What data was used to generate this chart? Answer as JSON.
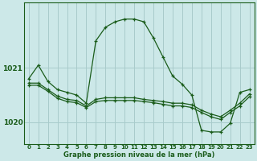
{
  "title": "Graphe pression niveau de la mer (hPa)",
  "background_color": "#cce8e8",
  "grid_color_teal": "#a8cccc",
  "grid_color_pink": "#e0aaaa",
  "line_color": "#1a5c1a",
  "ylim": [
    1019.6,
    1022.2
  ],
  "yticks": [
    1020,
    1021
  ],
  "xticks": [
    0,
    1,
    2,
    3,
    4,
    5,
    6,
    7,
    8,
    9,
    10,
    11,
    12,
    13,
    14,
    15,
    16,
    17,
    18,
    19,
    20,
    21,
    22,
    23
  ],
  "series": [
    {
      "x": [
        0,
        1,
        2,
        3,
        4,
        5,
        6,
        7,
        8,
        9,
        10,
        11,
        12,
        13,
        14,
        15,
        16,
        17,
        18,
        19,
        20,
        21,
        22,
        23
      ],
      "y": [
        1020.8,
        1021.05,
        1020.75,
        1020.6,
        1020.55,
        1020.5,
        1020.35,
        1021.5,
        1021.75,
        1021.85,
        1021.9,
        1021.9,
        1021.85,
        1021.55,
        1021.2,
        1020.85,
        1020.7,
        1020.5,
        1019.85,
        1019.82,
        1019.82,
        1019.98,
        1020.55,
        1020.6
      ]
    },
    {
      "x": [
        0,
        1,
        2,
        3,
        4,
        5,
        6,
        7,
        8,
        9,
        10,
        11,
        12,
        13,
        14,
        15,
        16,
        17,
        18,
        19,
        20,
        21,
        22,
        23
      ],
      "y": [
        1020.72,
        1020.72,
        1020.6,
        1020.48,
        1020.42,
        1020.4,
        1020.3,
        1020.42,
        1020.45,
        1020.45,
        1020.45,
        1020.45,
        1020.42,
        1020.4,
        1020.38,
        1020.35,
        1020.35,
        1020.32,
        1020.22,
        1020.15,
        1020.1,
        1020.22,
        1020.35,
        1020.52
      ]
    },
    {
      "x": [
        0,
        1,
        2,
        3,
        4,
        5,
        6,
        7,
        8,
        9,
        10,
        11,
        12,
        13,
        14,
        15,
        16,
        17,
        18,
        19,
        20,
        21,
        22,
        23
      ],
      "y": [
        1020.68,
        1020.68,
        1020.57,
        1020.44,
        1020.38,
        1020.36,
        1020.27,
        1020.38,
        1020.4,
        1020.4,
        1020.4,
        1020.4,
        1020.38,
        1020.36,
        1020.33,
        1020.3,
        1020.3,
        1020.27,
        1020.18,
        1020.1,
        1020.05,
        1020.18,
        1020.3,
        1020.47
      ]
    }
  ]
}
